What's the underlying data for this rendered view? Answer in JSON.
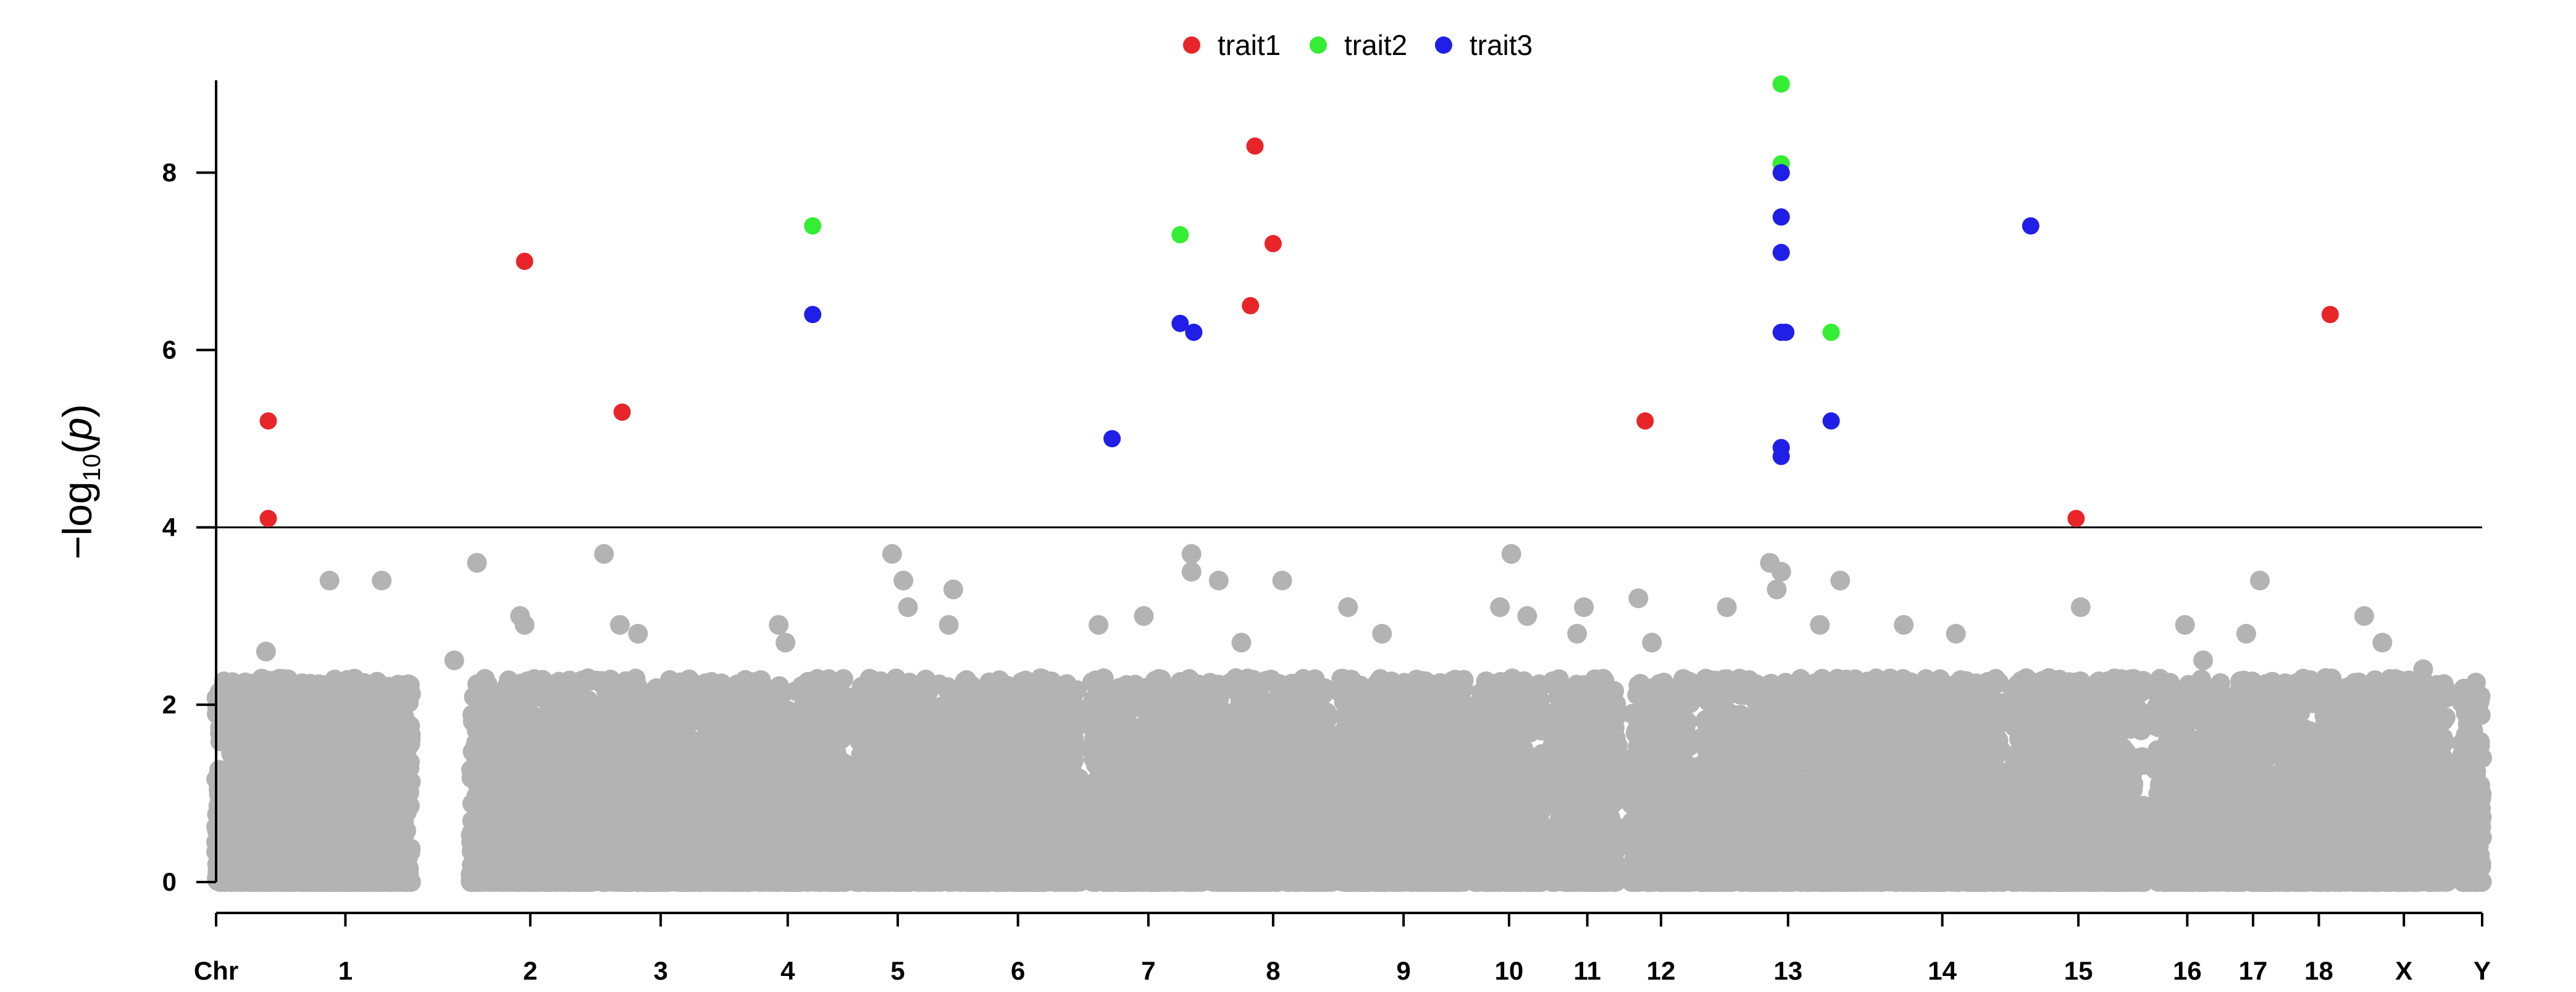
{
  "chart_data": {
    "type": "scatter",
    "title": "",
    "xlabel": "Chr",
    "ylabel": {
      "prefix": "−log",
      "subscript": "10",
      "open": "(",
      "var": "p",
      "close": ")"
    },
    "ylim": [
      0,
      9
    ],
    "yticks": [
      0,
      2,
      4,
      6,
      8
    ],
    "threshold": 4,
    "grid": false,
    "legend_position": "top-center",
    "background_color": "#b3b3b3",
    "chromosomes": [
      {
        "label": "1",
        "x0": 0.0,
        "x1": 86.0,
        "tick": 57.0
      },
      {
        "label": "2",
        "x0": 112.0,
        "x1": 168.0,
        "tick": 138.5
      },
      {
        "label": "3",
        "x0": 169.0,
        "x1": 224.0,
        "tick": 196.0
      },
      {
        "label": "4",
        "x0": 225.0,
        "x1": 278.0,
        "tick": 252.0
      },
      {
        "label": "5",
        "x0": 281.0,
        "x1": 320.0,
        "tick": 300.5
      },
      {
        "label": "6",
        "x0": 322.0,
        "x1": 381.0,
        "tick": 353.5
      },
      {
        "label": "7",
        "x0": 386.0,
        "x1": 435.0,
        "tick": 411.0
      },
      {
        "label": "8",
        "x0": 438.0,
        "x1": 492.0,
        "tick": 466.0
      },
      {
        "label": "9",
        "x0": 495.0,
        "x1": 551.0,
        "tick": 523.5
      },
      {
        "label": "10",
        "x0": 554.0,
        "x1": 585.0,
        "tick": 570.0
      },
      {
        "label": "11",
        "x0": 589.0,
        "x1": 618.0,
        "tick": 604.5
      },
      {
        "label": "12",
        "x0": 624.0,
        "x1": 651.0,
        "tick": 637.0
      },
      {
        "label": "13",
        "x0": 654.0,
        "x1": 732.0,
        "tick": 693.0
      },
      {
        "label": "14",
        "x0": 733.0,
        "x1": 788.0,
        "tick": 761.0
      },
      {
        "label": "15",
        "x0": 792.0,
        "x1": 850.0,
        "tick": 821.0
      },
      {
        "label": "16",
        "x0": 855.0,
        "x1": 884.0,
        "tick": 869.0
      },
      {
        "label": "17",
        "x0": 886.0,
        "x1": 910.0,
        "tick": 898.0
      },
      {
        "label": "18",
        "x0": 911.0,
        "x1": 943.0,
        "tick": 927.0
      },
      {
        "label": "X",
        "x0": 944.0,
        "x1": 984.0,
        "tick": 964.5
      },
      {
        "label": "Y",
        "x0": 990.0,
        "x1": 999.0,
        "tick": 999.0
      }
    ],
    "xlim": [
      0,
      999
    ],
    "background_tall_points": [
      {
        "x": 22,
        "y": 2.6
      },
      {
        "x": 50,
        "y": 3.4
      },
      {
        "x": 73,
        "y": 3.4
      },
      {
        "x": 105,
        "y": 2.5
      },
      {
        "x": 115,
        "y": 3.6
      },
      {
        "x": 134,
        "y": 3.0
      },
      {
        "x": 136,
        "y": 2.9
      },
      {
        "x": 171,
        "y": 3.7
      },
      {
        "x": 178,
        "y": 2.9
      },
      {
        "x": 186,
        "y": 2.8
      },
      {
        "x": 248,
        "y": 2.9
      },
      {
        "x": 251,
        "y": 2.7
      },
      {
        "x": 298,
        "y": 3.7
      },
      {
        "x": 303,
        "y": 3.4
      },
      {
        "x": 305,
        "y": 3.1
      },
      {
        "x": 325,
        "y": 3.3
      },
      {
        "x": 323,
        "y": 2.9
      },
      {
        "x": 389,
        "y": 2.9
      },
      {
        "x": 409,
        "y": 3.0
      },
      {
        "x": 430,
        "y": 3.7
      },
      {
        "x": 430,
        "y": 3.5
      },
      {
        "x": 442,
        "y": 3.4
      },
      {
        "x": 470,
        "y": 3.4
      },
      {
        "x": 452,
        "y": 2.7
      },
      {
        "x": 499,
        "y": 3.1
      },
      {
        "x": 514,
        "y": 2.8
      },
      {
        "x": 571,
        "y": 3.7
      },
      {
        "x": 566,
        "y": 3.1
      },
      {
        "x": 578,
        "y": 3.0
      },
      {
        "x": 600,
        "y": 2.8
      },
      {
        "x": 603,
        "y": 3.1
      },
      {
        "x": 627,
        "y": 3.2
      },
      {
        "x": 633,
        "y": 2.7
      },
      {
        "x": 666,
        "y": 3.1
      },
      {
        "x": 685,
        "y": 3.6
      },
      {
        "x": 690,
        "y": 3.5
      },
      {
        "x": 688,
        "y": 3.3
      },
      {
        "x": 716,
        "y": 3.4
      },
      {
        "x": 707,
        "y": 2.9
      },
      {
        "x": 744,
        "y": 2.9
      },
      {
        "x": 767,
        "y": 2.8
      },
      {
        "x": 822,
        "y": 3.1
      },
      {
        "x": 808,
        "y": 2.3
      },
      {
        "x": 868,
        "y": 2.9
      },
      {
        "x": 876,
        "y": 2.5
      },
      {
        "x": 901,
        "y": 3.4
      },
      {
        "x": 895,
        "y": 2.8
      },
      {
        "x": 930,
        "y": 2.3
      },
      {
        "x": 947,
        "y": 3.0
      },
      {
        "x": 955,
        "y": 2.7
      },
      {
        "x": 973,
        "y": 2.4
      },
      {
        "x": 999,
        "y": 1.4
      }
    ],
    "series": [
      {
        "name": "trait1",
        "color": "#e8262a",
        "points": [
          {
            "x": 23,
            "y": 5.2
          },
          {
            "x": 23,
            "y": 4.1
          },
          {
            "x": 136,
            "y": 7.0
          },
          {
            "x": 179,
            "y": 5.3
          },
          {
            "x": 458,
            "y": 8.3
          },
          {
            "x": 466,
            "y": 7.2
          },
          {
            "x": 456,
            "y": 6.5
          },
          {
            "x": 630,
            "y": 5.2
          },
          {
            "x": 820,
            "y": 4.1
          },
          {
            "x": 932,
            "y": 6.4
          }
        ]
      },
      {
        "name": "trait2",
        "color": "#33ee33",
        "points": [
          {
            "x": 263,
            "y": 7.4
          },
          {
            "x": 425,
            "y": 7.3
          },
          {
            "x": 690,
            "y": 9.0
          },
          {
            "x": 690,
            "y": 8.1
          },
          {
            "x": 712,
            "y": 6.2
          }
        ]
      },
      {
        "name": "trait3",
        "color": "#1f1fe8",
        "points": [
          {
            "x": 263,
            "y": 6.4
          },
          {
            "x": 425,
            "y": 6.3
          },
          {
            "x": 431,
            "y": 6.2
          },
          {
            "x": 395,
            "y": 5.0
          },
          {
            "x": 690,
            "y": 8.0
          },
          {
            "x": 690,
            "y": 7.5
          },
          {
            "x": 690,
            "y": 7.1
          },
          {
            "x": 690,
            "y": 6.2
          },
          {
            "x": 692,
            "y": 6.2
          },
          {
            "x": 690,
            "y": 4.9
          },
          {
            "x": 690,
            "y": 4.8
          },
          {
            "x": 712,
            "y": 5.2
          },
          {
            "x": 800,
            "y": 7.4
          }
        ]
      }
    ]
  }
}
